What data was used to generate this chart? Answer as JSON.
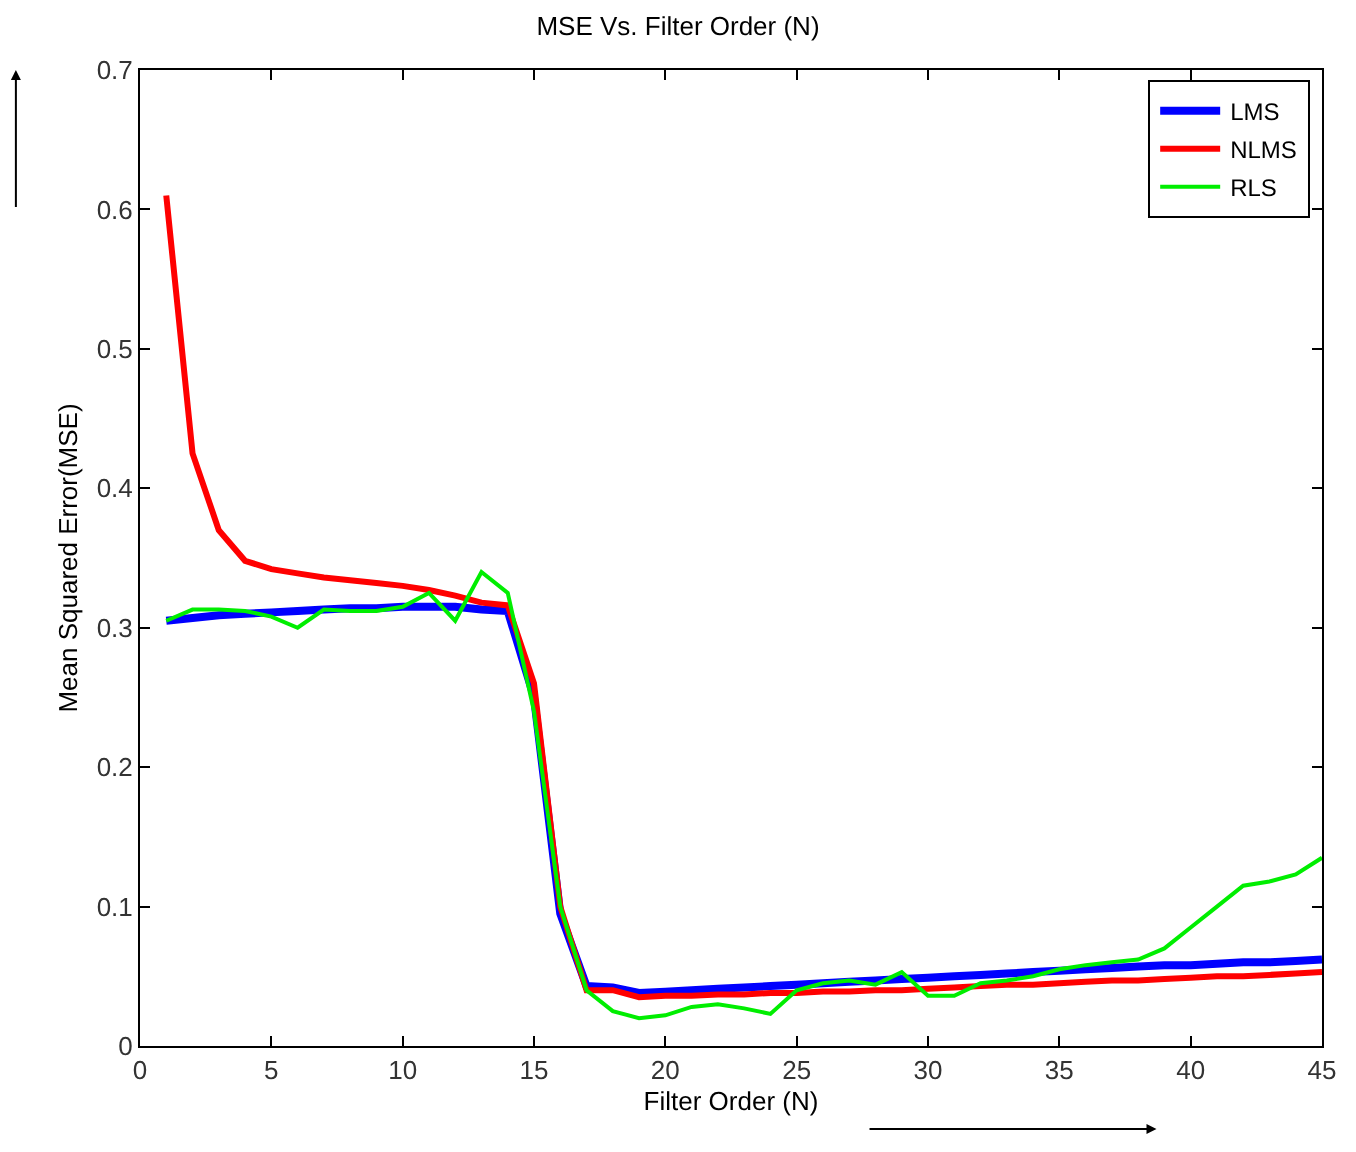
{
  "chart_data": {
    "type": "line",
    "title": "MSE Vs. Filter Order (N)",
    "xlabel": "Filter Order (N)",
    "ylabel": "Mean Squared Error(MSE)",
    "x": [
      1,
      2,
      3,
      4,
      5,
      6,
      7,
      8,
      9,
      10,
      11,
      12,
      13,
      14,
      15,
      16,
      17,
      18,
      19,
      20,
      21,
      22,
      23,
      24,
      25,
      26,
      27,
      28,
      29,
      30,
      31,
      32,
      33,
      34,
      35,
      36,
      37,
      38,
      39,
      40,
      41,
      42,
      43,
      44,
      45
    ],
    "series": [
      {
        "name": "LMS",
        "color": "#0000ff",
        "values": [
          0.305,
          0.307,
          0.309,
          0.31,
          0.311,
          0.312,
          0.313,
          0.314,
          0.314,
          0.315,
          0.315,
          0.315,
          0.313,
          0.312,
          0.25,
          0.095,
          0.043,
          0.042,
          0.038,
          0.039,
          0.04,
          0.041,
          0.042,
          0.043,
          0.044,
          0.045,
          0.046,
          0.047,
          0.048,
          0.049,
          0.05,
          0.051,
          0.052,
          0.053,
          0.054,
          0.055,
          0.056,
          0.057,
          0.058,
          0.058,
          0.059,
          0.06,
          0.06,
          0.061,
          0.062
        ]
      },
      {
        "name": "NLMS",
        "color": "#ff0000",
        "values": [
          0.61,
          0.425,
          0.37,
          0.348,
          0.342,
          0.339,
          0.336,
          0.334,
          0.332,
          0.33,
          0.327,
          0.323,
          0.318,
          0.316,
          0.26,
          0.1,
          0.04,
          0.04,
          0.035,
          0.036,
          0.036,
          0.037,
          0.037,
          0.038,
          0.038,
          0.039,
          0.039,
          0.04,
          0.04,
          0.041,
          0.042,
          0.043,
          0.044,
          0.044,
          0.045,
          0.046,
          0.047,
          0.047,
          0.048,
          0.049,
          0.05,
          0.05,
          0.051,
          0.052,
          0.053
        ]
      },
      {
        "name": "RLS",
        "color": "#00ee00",
        "values": [
          0.305,
          0.313,
          0.313,
          0.312,
          0.308,
          0.3,
          0.313,
          0.312,
          0.312,
          0.315,
          0.325,
          0.305,
          0.34,
          0.325,
          0.24,
          0.1,
          0.04,
          0.025,
          0.02,
          0.022,
          0.028,
          0.03,
          0.027,
          0.023,
          0.04,
          0.045,
          0.047,
          0.044,
          0.053,
          0.036,
          0.036,
          0.045,
          0.047,
          0.05,
          0.055,
          0.058,
          0.06,
          0.062,
          0.07,
          0.085,
          0.1,
          0.115,
          0.118,
          0.123,
          0.135
        ]
      }
    ],
    "xlim": [
      0,
      45
    ],
    "xticks": [
      0,
      5,
      10,
      15,
      20,
      25,
      30,
      35,
      40,
      45
    ],
    "ylim": [
      0,
      0.7
    ],
    "yticks": [
      0,
      0.1,
      0.2,
      0.3,
      0.4,
      0.5,
      0.6,
      0.7
    ],
    "legend": "top right",
    "marker": "none",
    "line_style": "solid"
  }
}
